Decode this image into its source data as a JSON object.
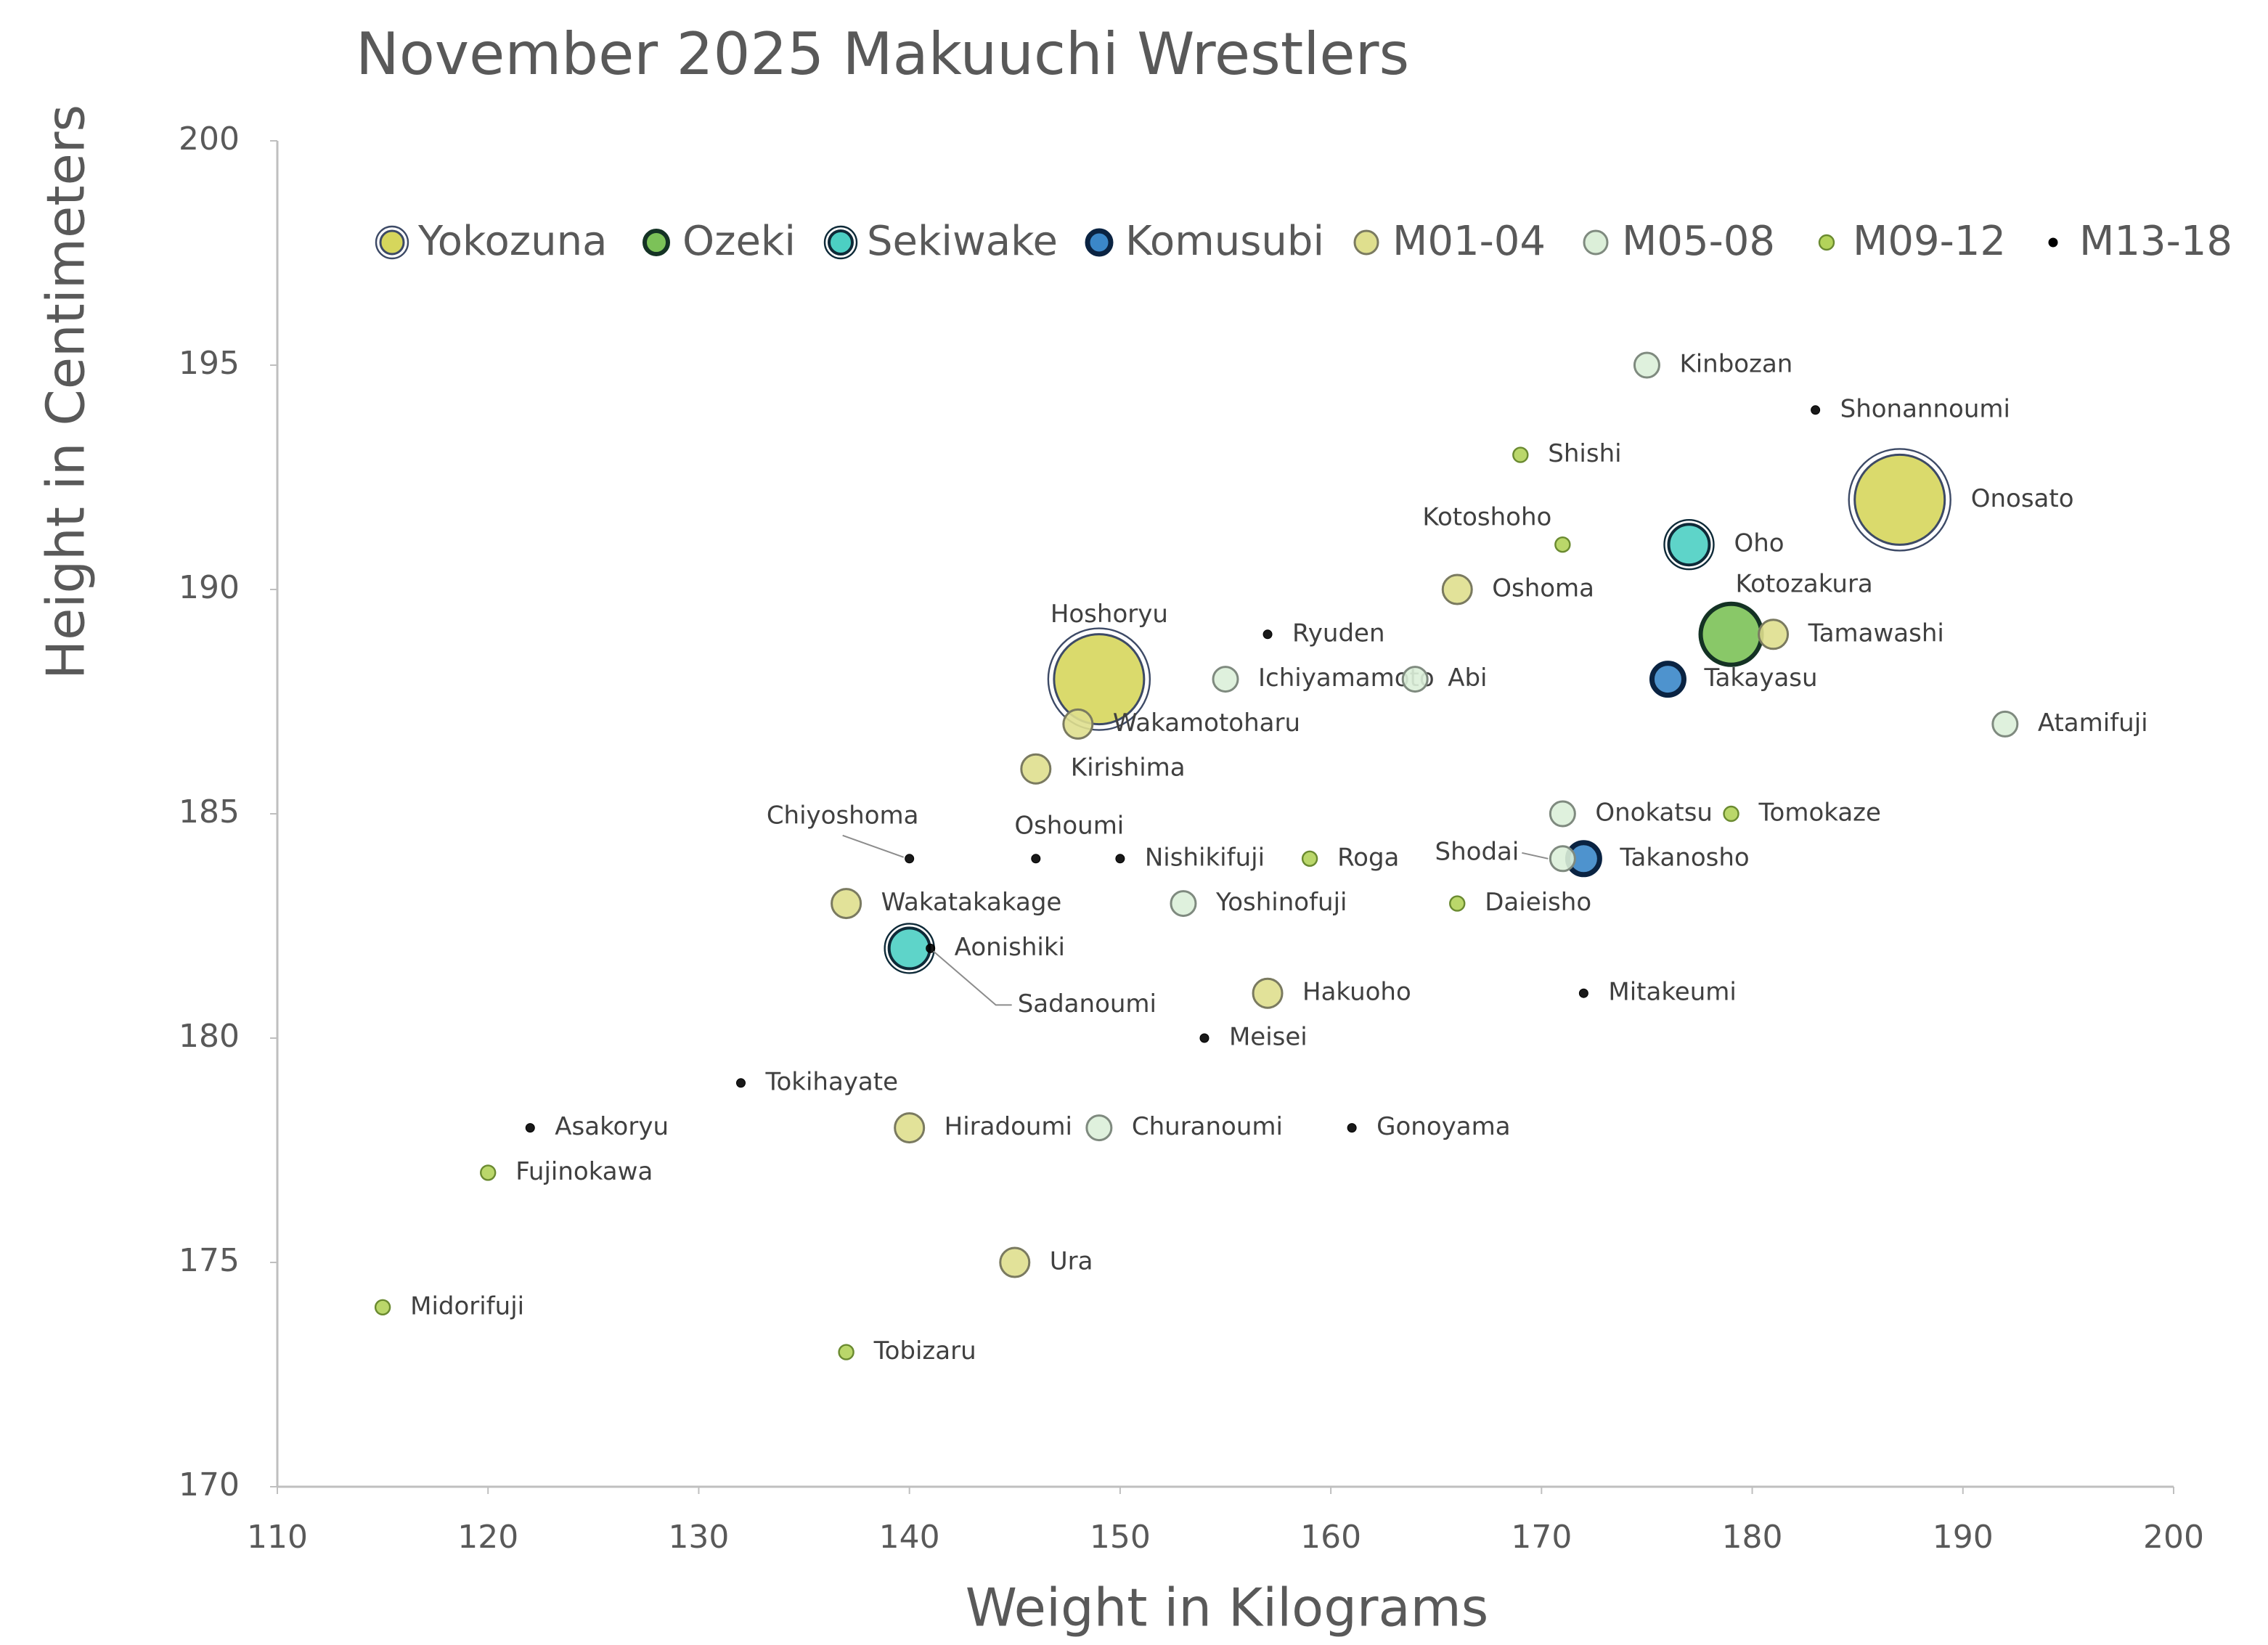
{
  "chart_data": {
    "type": "scatter",
    "title": "November 2025 Makuuchi Wrestlers",
    "x_label": "Weight in Kilograms",
    "y_label": "Height in Centimeters",
    "xlim": [
      110,
      200
    ],
    "xticks": [
      110,
      120,
      130,
      140,
      150,
      160,
      170,
      180,
      190,
      200
    ],
    "ylim": [
      170,
      200
    ],
    "yticks": [
      170,
      175,
      180,
      185,
      190,
      195,
      200
    ],
    "grid": false,
    "legend": "top",
    "series": [
      {
        "name": "Yokozuna",
        "color": "#d6d65c",
        "x": [
          187,
          149
        ],
        "values": [
          192,
          188
        ],
        "labels": [
          "Onosato",
          "Hoshoryu"
        ]
      },
      {
        "name": "Ozeki",
        "color": "#7cc258",
        "x": [
          179
        ],
        "values": [
          189
        ],
        "labels": [
          "Kotozakura"
        ]
      },
      {
        "name": "Sekiwake",
        "color": "#4ccfc3",
        "x": [
          177,
          140
        ],
        "values": [
          191,
          182
        ],
        "labels": [
          "Oho",
          "Aonishiki"
        ]
      },
      {
        "name": "Komusubi",
        "color": "#3b87c9",
        "x": [
          176,
          172
        ],
        "values": [
          188,
          184
        ],
        "labels": [
          "Takayasu",
          "Takanosho"
        ]
      },
      {
        "name": "M01-04",
        "color": "#dfdf8e",
        "x": [
          166,
          181,
          148,
          146,
          137,
          157,
          140,
          145
        ],
        "values": [
          190,
          189,
          187,
          186,
          183,
          181,
          178,
          175
        ],
        "labels": [
          "Oshoma",
          "Tamawashi",
          "Wakamotoharu",
          "Kirishima",
          "Wakatakakage",
          "Hakuoho",
          "Hiradoumi",
          "Ura"
        ]
      },
      {
        "name": "M05-08",
        "color": "#dcefd9",
        "x": [
          175,
          155,
          164,
          192,
          171,
          171,
          153,
          149
        ],
        "values": [
          195,
          188,
          188,
          187,
          185,
          184,
          183,
          178
        ],
        "labels": [
          "Kinbozan",
          "Ichiyamamoto",
          "Abi",
          "Atamifuji",
          "Onokatsu",
          "Shodai",
          "Yoshinofuji",
          "Churanoumi"
        ]
      },
      {
        "name": "M09-12",
        "color": "#b3d35a",
        "x": [
          169,
          171,
          159,
          179,
          166,
          120,
          115,
          137
        ],
        "values": [
          193,
          191,
          184,
          185,
          183,
          177,
          174,
          173
        ],
        "labels": [
          "Shishi",
          "Kotoshoho",
          "Roga",
          "Tomokaze",
          "Daieisho",
          "Fujinokawa",
          "Midorifuji",
          "Tobizaru"
        ]
      },
      {
        "name": "M13-18",
        "color": "#000000",
        "x": [
          183,
          157,
          140,
          146,
          150,
          141,
          172,
          154,
          132,
          122,
          161
        ],
        "values": [
          194,
          189,
          184,
          184,
          184,
          182,
          181,
          180,
          179,
          178,
          178
        ],
        "labels": [
          "Shonannoumi",
          "Ryuden",
          "Chiyoshoma",
          "Oshoumi",
          "Nishikifuji",
          "Sadanoumi",
          "Mitakeumi",
          "Meisei",
          "Tokihayate",
          "Asakoryu",
          "Gonoyama"
        ]
      }
    ]
  }
}
